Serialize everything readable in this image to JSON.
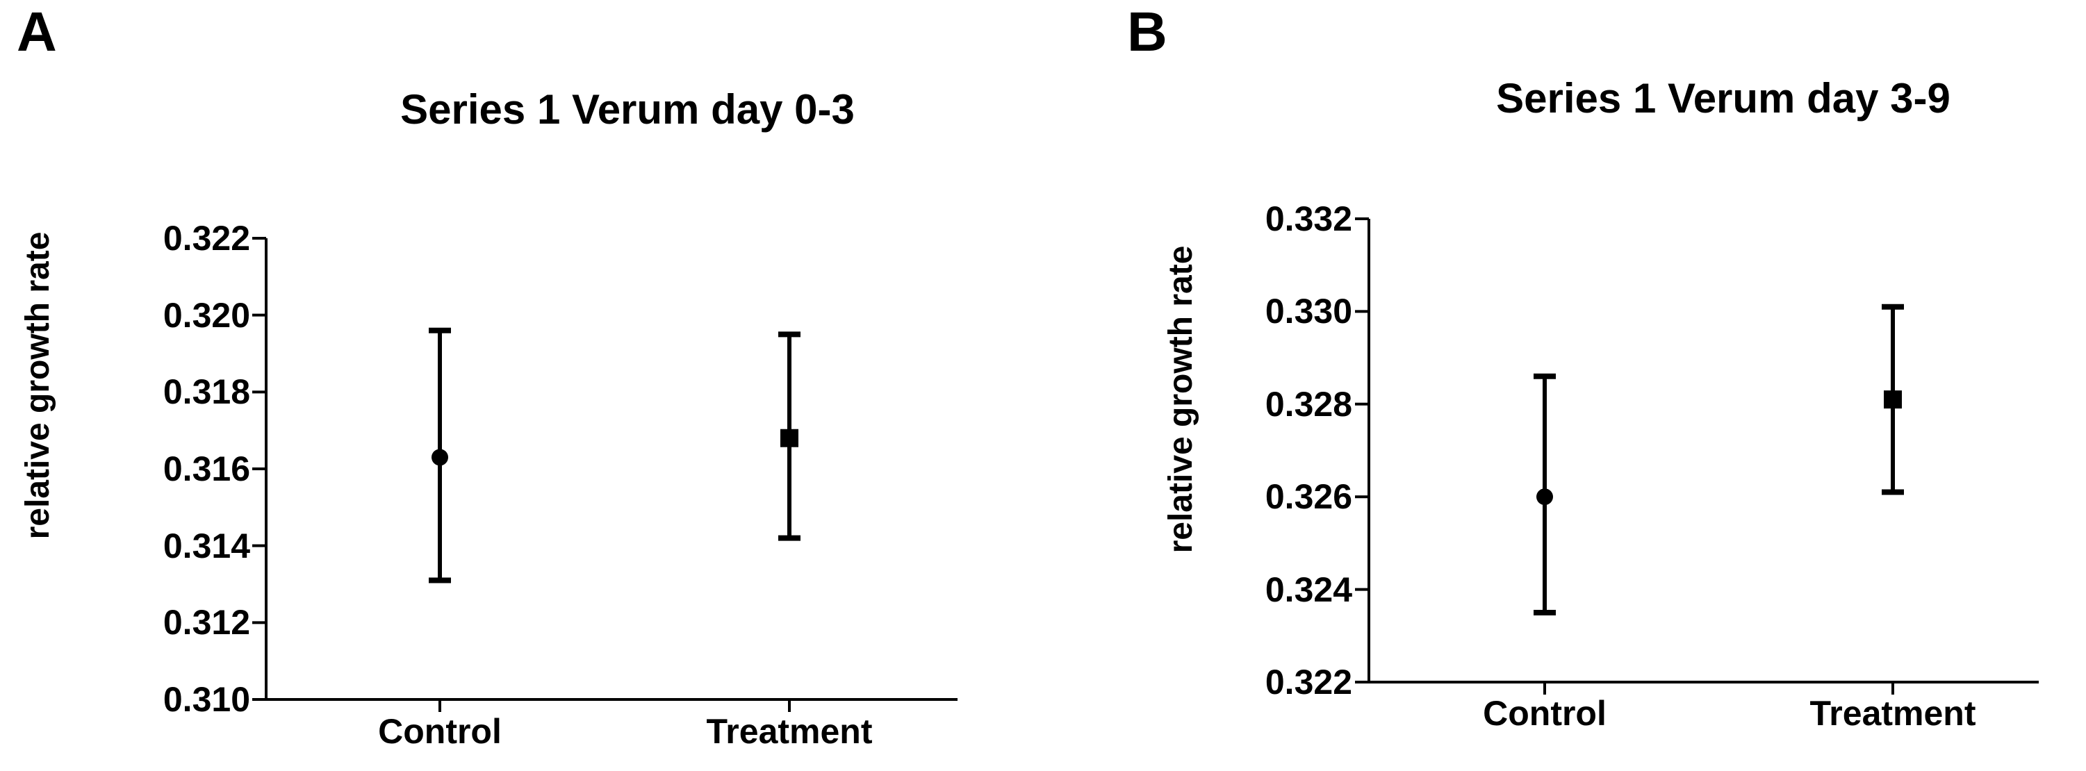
{
  "figure": {
    "background": "#ffffff"
  },
  "colors": {
    "foreground": "#000000"
  },
  "chart_data": [
    {
      "type": "scatter",
      "panel_label": "A",
      "title": "Series 1 Verum day 0-3",
      "ylabel": "relative growth rate",
      "xlabel": "",
      "categories": [
        "Control",
        "Treatment"
      ],
      "ylim": [
        0.31,
        0.322
      ],
      "yticks": [
        0.31,
        0.312,
        0.314,
        0.316,
        0.318,
        0.32,
        0.322
      ],
      "ytick_labels": [
        "0.310",
        "0.312",
        "0.314",
        "0.316",
        "0.318",
        "0.320",
        "0.322"
      ],
      "grid": false,
      "legend": false,
      "points": [
        {
          "category": "Control",
          "marker": "circle",
          "mean": 0.3163,
          "lower": 0.3131,
          "upper": 0.3196
        },
        {
          "category": "Treatment",
          "marker": "square",
          "mean": 0.3168,
          "lower": 0.3142,
          "upper": 0.3195
        }
      ]
    },
    {
      "type": "scatter",
      "panel_label": "B",
      "title": "Series 1 Verum day 3-9",
      "ylabel": "relative growth rate",
      "xlabel": "",
      "categories": [
        "Control",
        "Treatment"
      ],
      "ylim": [
        0.322,
        0.332
      ],
      "yticks": [
        0.322,
        0.324,
        0.326,
        0.328,
        0.33,
        0.332
      ],
      "ytick_labels": [
        "0.322",
        "0.324",
        "0.326",
        "0.328",
        "0.330",
        "0.332"
      ],
      "grid": false,
      "legend": false,
      "points": [
        {
          "category": "Control",
          "marker": "circle",
          "mean": 0.326,
          "lower": 0.3235,
          "upper": 0.3286
        },
        {
          "category": "Treatment",
          "marker": "square",
          "mean": 0.3281,
          "lower": 0.3261,
          "upper": 0.3301
        }
      ]
    }
  ]
}
